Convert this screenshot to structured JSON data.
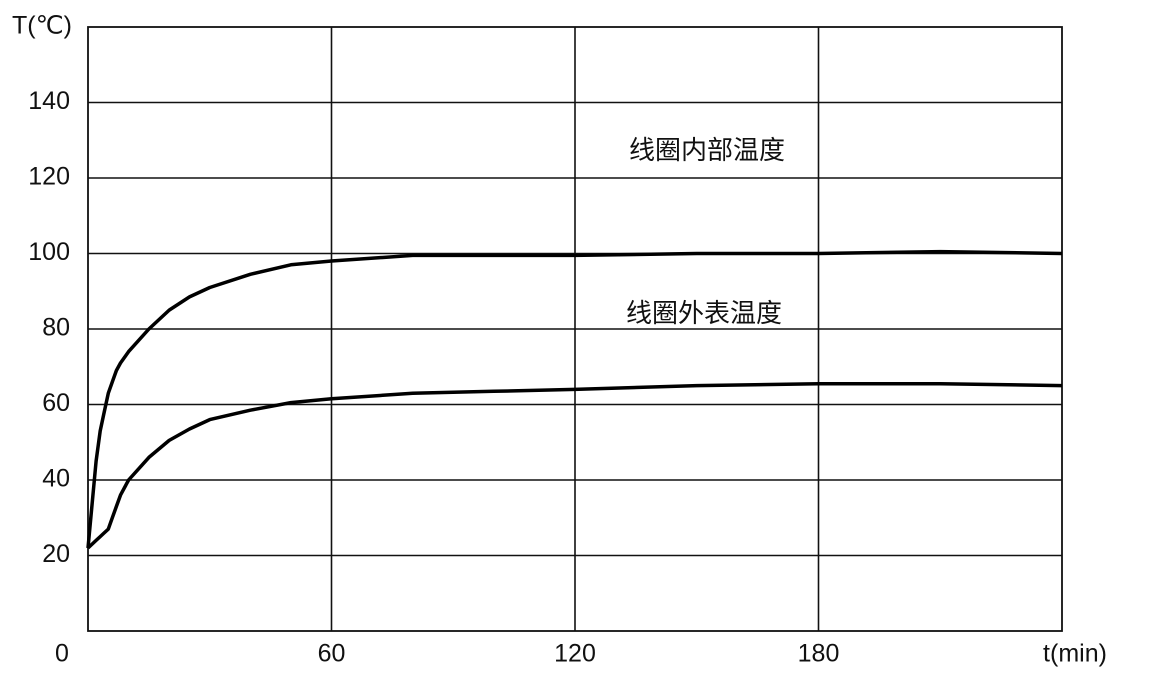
{
  "chart_data": {
    "type": "line",
    "x_label": "t(min)",
    "y_label": "T(℃)",
    "x": [
      0,
      2,
      3,
      4,
      5,
      6,
      7,
      8,
      10,
      15,
      20,
      25,
      30,
      40,
      50,
      60,
      80,
      100,
      120,
      150,
      180,
      210,
      240
    ],
    "series": [
      {
        "name": "线圈内部温度",
        "color": "#000000",
        "values": [
          22,
          45,
          53,
          58,
          63,
          66,
          69,
          71,
          74,
          80,
          85,
          88.5,
          91,
          94.5,
          97,
          98,
          99.5,
          99.5,
          99.5,
          100,
          100,
          100.5,
          100
        ]
      },
      {
        "name": "线圈外表温度",
        "color": "#000000",
        "values": [
          22,
          24,
          25,
          26,
          27,
          30,
          33,
          36,
          40,
          46,
          50.5,
          53.5,
          56,
          58.5,
          60.5,
          61.5,
          63,
          63.5,
          64,
          65,
          65.5,
          65.5,
          65
        ]
      }
    ],
    "xlim": [
      0,
      240
    ],
    "ylim": [
      0,
      160
    ],
    "xticks": [
      0,
      60,
      120,
      180
    ],
    "yticks": [
      20,
      40,
      60,
      80,
      100,
      120,
      140
    ],
    "grid": true
  }
}
